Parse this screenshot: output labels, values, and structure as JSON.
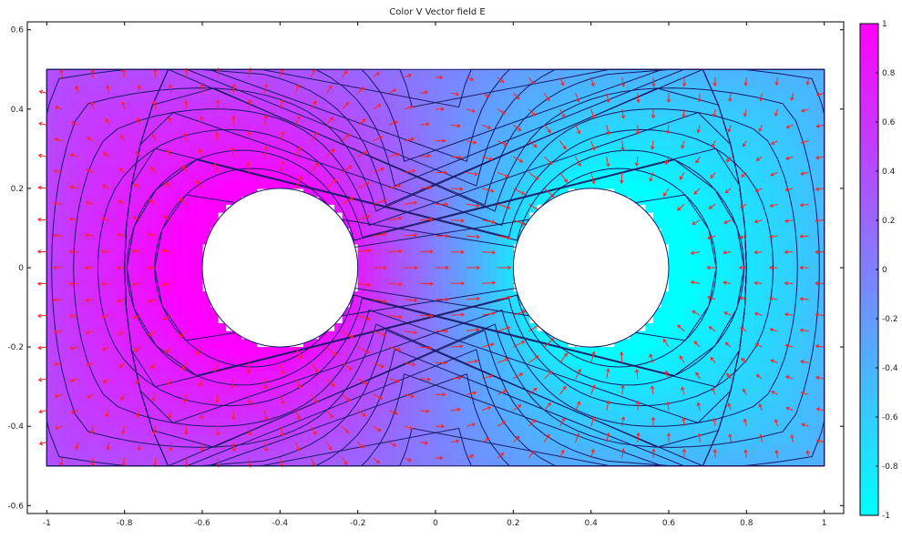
{
  "chart_data": {
    "type": "heatmap",
    "title": "Color  V  Vector field  E",
    "xlim": [
      -1.05,
      1.05
    ],
    "ylim": [
      -0.62,
      0.62
    ],
    "domain": {
      "x": [
        -1,
        1
      ],
      "y": [
        -0.5,
        0.5
      ]
    },
    "holes": [
      {
        "name": "positive-electrode",
        "cx": -0.4,
        "cy": 0,
        "r": 0.2,
        "V": 1
      },
      {
        "name": "negative-electrode",
        "cx": 0.4,
        "cy": 0,
        "r": 0.2,
        "V": -1
      }
    ],
    "x_ticks": [
      {
        "v": -1,
        "label": "-1"
      },
      {
        "v": -0.8,
        "label": "-0.8"
      },
      {
        "v": -0.6,
        "label": "-0.6"
      },
      {
        "v": -0.4,
        "label": "-0.4"
      },
      {
        "v": -0.2,
        "label": "-0.2"
      },
      {
        "v": 0,
        "label": "0"
      },
      {
        "v": 0.2,
        "label": "0.2"
      },
      {
        "v": 0.4,
        "label": "0.4"
      },
      {
        "v": 0.6,
        "label": "0.6"
      },
      {
        "v": 0.8,
        "label": "0.8"
      },
      {
        "v": 1,
        "label": "1"
      }
    ],
    "y_ticks": [
      {
        "v": 0.6,
        "label": "0.6"
      },
      {
        "v": 0.4,
        "label": "0.4"
      },
      {
        "v": 0.2,
        "label": "0.2"
      },
      {
        "v": 0,
        "label": "0"
      },
      {
        "v": -0.2,
        "label": "-0.2"
      },
      {
        "v": -0.4,
        "label": "-0.4"
      },
      {
        "v": -0.6,
        "label": "-0.6"
      }
    ],
    "colorbar": {
      "range": [
        -1,
        1
      ],
      "colors": {
        "min": "#00ffff",
        "mid": "#8080ff",
        "max": "#ff00ff"
      },
      "ticks": [
        {
          "v": 1,
          "label": "1"
        },
        {
          "v": 0.8,
          "label": "0.8"
        },
        {
          "v": 0.6,
          "label": "0.6"
        },
        {
          "v": 0.4,
          "label": "0.4"
        },
        {
          "v": 0.2,
          "label": "0.2"
        },
        {
          "v": 0,
          "label": "0"
        },
        {
          "v": -0.2,
          "label": "-0.2"
        },
        {
          "v": -0.4,
          "label": "-0.4"
        },
        {
          "v": -0.6,
          "label": "-0.6"
        },
        {
          "v": -0.8,
          "label": "-0.8"
        },
        {
          "v": -1,
          "label": "-1"
        }
      ]
    },
    "contour_levels": [
      -0.9,
      -0.8,
      -0.7,
      -0.6,
      -0.5,
      -0.4,
      -0.3,
      -0.2,
      -0.1,
      0.1,
      0.2,
      0.3,
      0.4,
      0.5,
      0.6,
      0.7,
      0.8,
      0.9
    ],
    "contour_color": "#1a1a66",
    "arrow_color": "#ff2020",
    "grid": false
  }
}
